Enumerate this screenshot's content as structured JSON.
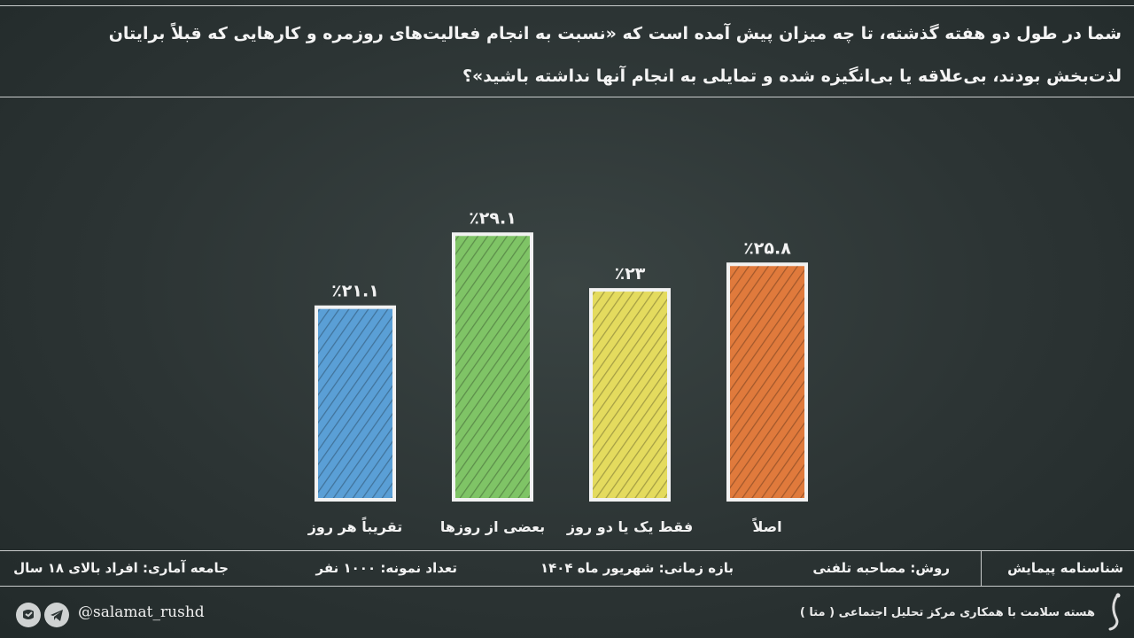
{
  "question": {
    "line1": "شما در طول دو هفته گذشته، تا چه میزان پیش آمده است که «نسبت به انجام فعالیت‌های روزمره و کارهایی که قبلاً برایتان",
    "line2": "لذت‌بخش بودند، بی‌علاقه یا بی‌انگیزه شده و تمایلی به انجام آنها نداشته باشید»؟"
  },
  "chart_data": {
    "type": "bar",
    "categories": [
      "تقریباً هر روز",
      "بعضی از روزها",
      "فقط یک یا دو روز",
      "اصلاً"
    ],
    "values": [
      21.1,
      29.1,
      23,
      25.8
    ],
    "value_labels": [
      "٪۲۱.۱",
      "٪۲۹.۱",
      "٪۲۳",
      "٪۲۵.۸"
    ],
    "colors": [
      "#5a9fd6",
      "#7fc466",
      "#e4db5e",
      "#e07a3c"
    ],
    "ylim": [
      0,
      35
    ]
  },
  "footer": {
    "survey_id": "شناسنامه پیمایش",
    "method": "روش: مصاحبه تلفنی",
    "period": "بازه زمانی: شهریور ماه ۱۴۰۴",
    "sample": "تعداد نمونه: ۱۰۰۰ نفر",
    "population": "جامعه آماری: افراد بالای ۱۸ سال"
  },
  "bottom": {
    "credit": "هسته سلامت با همکاری مرکز تحلیل اجتماعی ( متا )",
    "handle": "@salamat_rushd"
  }
}
